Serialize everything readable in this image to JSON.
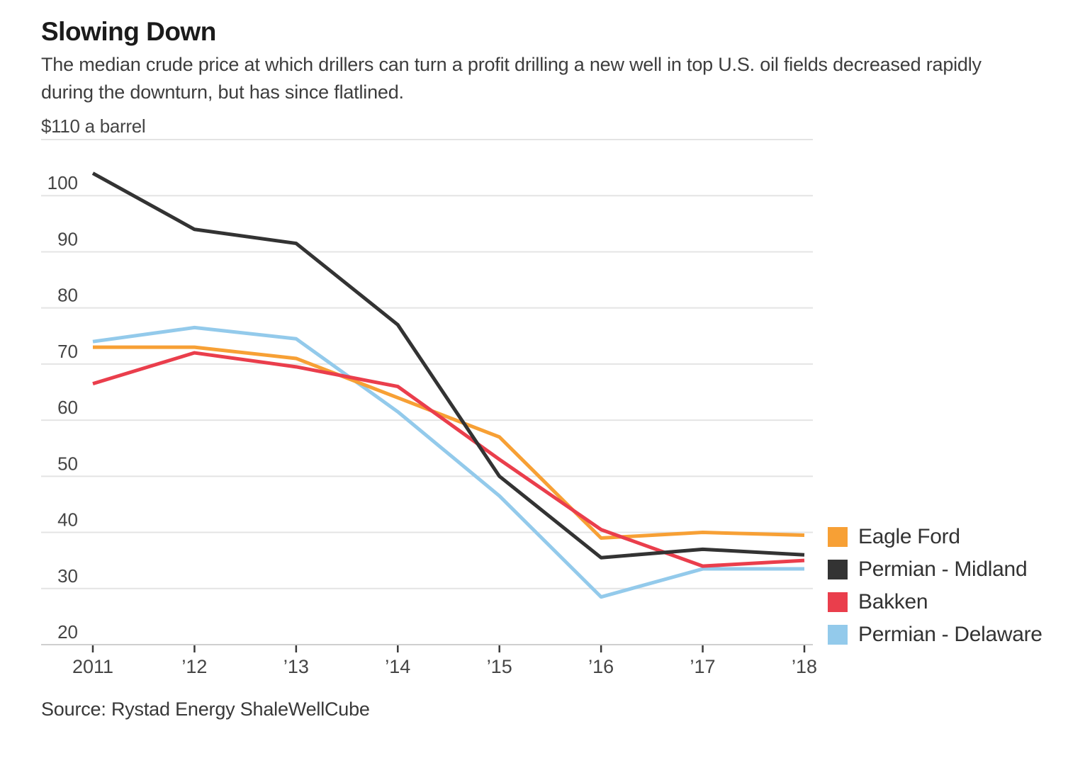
{
  "header": {
    "title": "Slowing Down",
    "subtitle": "The median crude price at which drillers can turn a profit drilling a new well in top U.S. oil fields decreased rapidly during the downturn, but has since flatlined."
  },
  "chart_data": {
    "type": "line",
    "title": "Slowing Down",
    "unit_label": "$110 a barrel",
    "x": [
      2011,
      2012,
      2013,
      2014,
      2015,
      2016,
      2017,
      2018
    ],
    "x_tick_labels": [
      "2011",
      "’12",
      "’13",
      "’14",
      "’15",
      "’16",
      "’17",
      "’18"
    ],
    "y_ticks": [
      100,
      90,
      80,
      70,
      60,
      50,
      40,
      30,
      20
    ],
    "ylim": [
      20,
      110
    ],
    "grid": true,
    "legend_position": "right-bottom",
    "series": [
      {
        "name": "Eagle Ford",
        "color": "#F7A035",
        "values": [
          73,
          73,
          71,
          64,
          57,
          39,
          40,
          39.5
        ]
      },
      {
        "name": "Permian - Midland",
        "color": "#333333",
        "values": [
          104,
          94,
          91.5,
          77,
          50,
          35.5,
          37,
          36
        ]
      },
      {
        "name": "Bakken",
        "color": "#EA3E4C",
        "values": [
          66.5,
          72,
          69.5,
          66,
          53,
          40.5,
          34,
          35
        ]
      },
      {
        "name": "Permian - Delaware",
        "color": "#93CAEB",
        "values": [
          74,
          76.5,
          74.5,
          61.5,
          46.5,
          28.5,
          33.5,
          33.5
        ]
      }
    ]
  },
  "footer": {
    "source": "Source: Rystad Energy ShaleWellCube"
  }
}
